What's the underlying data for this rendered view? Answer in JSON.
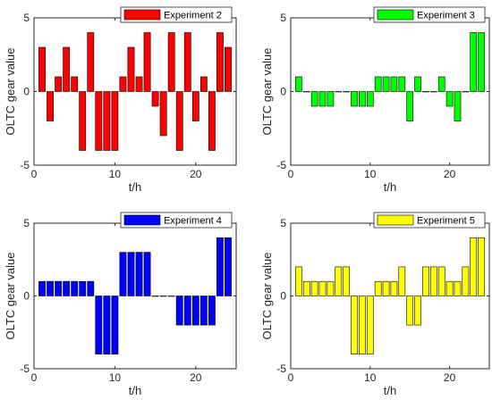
{
  "chart_data": [
    {
      "type": "bar",
      "x": [
        1,
        2,
        3,
        4,
        5,
        6,
        7,
        8,
        9,
        10,
        11,
        12,
        13,
        14,
        15,
        16,
        17,
        18,
        19,
        20,
        21,
        22,
        23,
        24
      ],
      "values": [
        3,
        -2,
        1,
        3,
        1,
        -4,
        4,
        -4,
        -4,
        -4,
        1,
        3,
        1,
        4,
        -1,
        -3,
        4,
        -4,
        4,
        -2,
        1,
        -4,
        4,
        3
      ],
      "series_name": "Experiment 2",
      "color": "#ff0000",
      "xlabel": "t/h",
      "ylabel": "OLTC gear value",
      "xlim": [
        0,
        25
      ],
      "ylim": [
        -5,
        5
      ],
      "xticks": [
        "0",
        "10",
        "20"
      ],
      "yticks": [
        "-5",
        "0",
        "5"
      ],
      "legend": "top-right"
    },
    {
      "type": "bar",
      "x": [
        1,
        2,
        3,
        4,
        5,
        6,
        7,
        8,
        9,
        10,
        11,
        12,
        13,
        14,
        15,
        16,
        17,
        18,
        19,
        20,
        21,
        22,
        23,
        24
      ],
      "values": [
        1,
        0,
        -1,
        -1,
        -1,
        0,
        0,
        -1,
        -1,
        -1,
        1,
        1,
        1,
        1,
        -2,
        1,
        0,
        0,
        1,
        -1,
        -2,
        0,
        4,
        4
      ],
      "series_name": "Experiment 3",
      "color": "#00ff00",
      "xlabel": "t/h",
      "ylabel": "OLTC gear value",
      "xlim": [
        0,
        25
      ],
      "ylim": [
        -5,
        5
      ],
      "xticks": [
        "0",
        "10",
        "20"
      ],
      "yticks": [
        "-5",
        "0",
        "5"
      ],
      "legend": "top-right"
    },
    {
      "type": "bar",
      "x": [
        1,
        2,
        3,
        4,
        5,
        6,
        7,
        8,
        9,
        10,
        11,
        12,
        13,
        14,
        15,
        16,
        17,
        18,
        19,
        20,
        21,
        22,
        23,
        24
      ],
      "values": [
        1,
        1,
        1,
        1,
        1,
        1,
        1,
        -4,
        -4,
        -4,
        3,
        3,
        3,
        3,
        0,
        0,
        0,
        -2,
        -2,
        -2,
        -2,
        -2,
        4,
        4
      ],
      "series_name": "Experiment 4",
      "color": "#0000ff",
      "xlabel": "t/h",
      "ylabel": "OLTC gear value",
      "xlim": [
        0,
        25
      ],
      "ylim": [
        -5,
        5
      ],
      "xticks": [
        "0",
        "10",
        "20"
      ],
      "yticks": [
        "-5",
        "0",
        "5"
      ],
      "legend": "top-right"
    },
    {
      "type": "bar",
      "x": [
        1,
        2,
        3,
        4,
        5,
        6,
        7,
        8,
        9,
        10,
        11,
        12,
        13,
        14,
        15,
        16,
        17,
        18,
        19,
        20,
        21,
        22,
        23,
        24
      ],
      "values": [
        2,
        1,
        1,
        1,
        1,
        2,
        2,
        -4,
        -4,
        -4,
        1,
        1,
        1,
        2,
        -2,
        -2,
        2,
        2,
        2,
        1,
        1,
        2,
        4,
        4
      ],
      "series_name": "Experiment 5",
      "color": "#ffff00",
      "xlabel": "t/h",
      "ylabel": "OLTC gear value",
      "xlim": [
        0,
        25
      ],
      "ylim": [
        -5,
        5
      ],
      "xticks": [
        "0",
        "10",
        "20"
      ],
      "yticks": [
        "-5",
        "0",
        "5"
      ],
      "legend": "top-right"
    }
  ]
}
